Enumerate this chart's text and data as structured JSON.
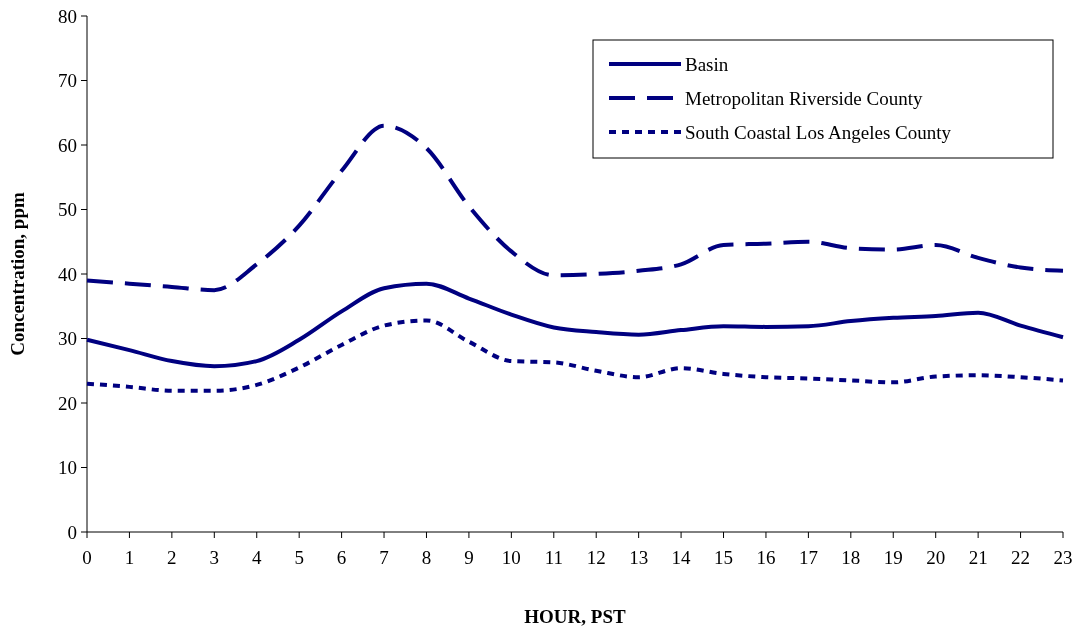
{
  "chart_data": {
    "type": "line",
    "xlabel": "HOUR, PST",
    "ylabel": "Concentration, ppm",
    "x": [
      0,
      1,
      2,
      3,
      4,
      5,
      6,
      7,
      8,
      9,
      10,
      11,
      12,
      13,
      14,
      15,
      16,
      17,
      18,
      19,
      20,
      21,
      22,
      23
    ],
    "xlim": [
      0,
      23
    ],
    "xticks": [
      0,
      1,
      2,
      3,
      4,
      5,
      6,
      7,
      8,
      9,
      10,
      11,
      12,
      13,
      14,
      15,
      16,
      17,
      18,
      19,
      20,
      21,
      22,
      23
    ],
    "ylim": [
      0,
      80
    ],
    "yticks": [
      0,
      10,
      20,
      30,
      40,
      50,
      60,
      70,
      80
    ],
    "grid": false,
    "legend": "top right",
    "series": [
      {
        "name": "Basin",
        "color": "#000080",
        "line_style": "solid",
        "values": [
          29.8,
          28.2,
          26.5,
          25.7,
          26.5,
          29.8,
          34.2,
          37.8,
          38.5,
          36.2,
          33.7,
          31.7,
          31.0,
          30.6,
          31.3,
          31.9,
          31.8,
          31.9,
          32.7,
          33.2,
          33.5,
          34.0,
          32.0,
          30.2
        ]
      },
      {
        "name": "Metropolitan Riverside County",
        "color": "#000080",
        "line_style": "dashed",
        "values": [
          39,
          38.5,
          38,
          37.5,
          41.5,
          47.5,
          56,
          63,
          59.5,
          50.5,
          43.5,
          39.8,
          40,
          40.5,
          41.5,
          44.5,
          44.7,
          45,
          44,
          43.8,
          44.5,
          42.5,
          41,
          40.5
        ]
      },
      {
        "name": "South Coastal Los Angeles County",
        "color": "#000080",
        "line_style": "dotted",
        "values": [
          23,
          22.5,
          21.9,
          21.9,
          22.8,
          25.5,
          29,
          32,
          32.8,
          29.5,
          26.5,
          26.3,
          25,
          24,
          25.4,
          24.5,
          24,
          23.8,
          23.5,
          23.2,
          24.1,
          24.3,
          24,
          23.5
        ]
      }
    ]
  }
}
